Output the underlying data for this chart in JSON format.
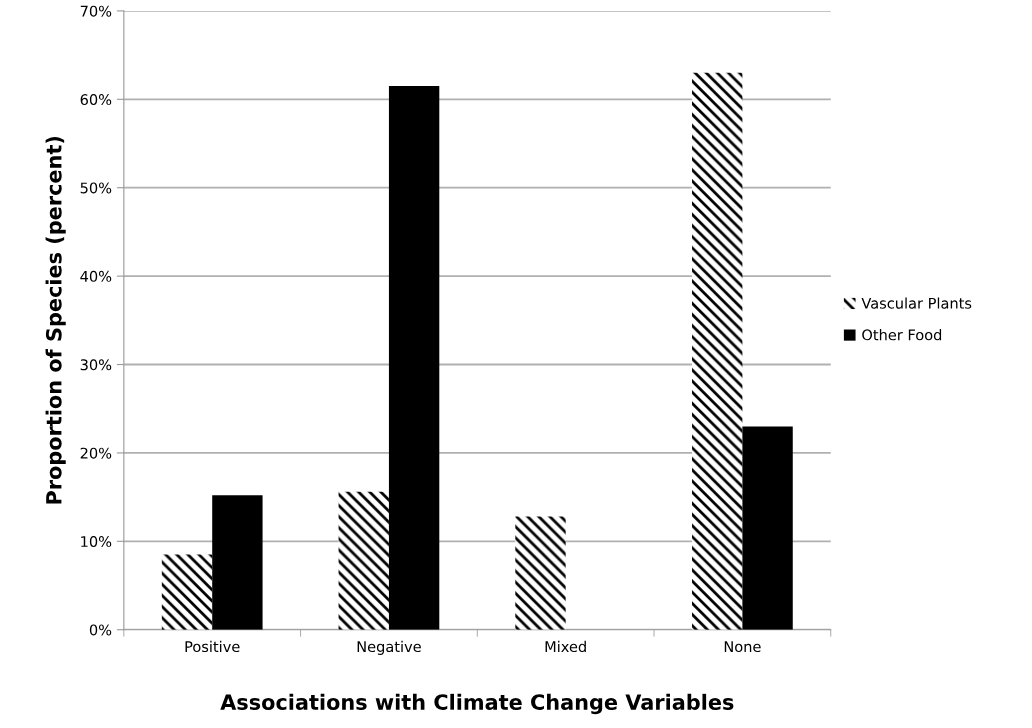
{
  "chart_data": {
    "type": "bar",
    "xlabel": "Associations with Climate Change Variables",
    "ylabel": "Proportion of Species (percent)",
    "categories": [
      "Positive",
      "Negative",
      "Mixed",
      "None"
    ],
    "series": [
      {
        "name": "Vascular Plants",
        "color": "#000000",
        "values": [
          8.5,
          15.6,
          12.8,
          63.0
        ]
      },
      {
        "name": "Other Food",
        "color": "#000000",
        "values": [
          15.2,
          61.5,
          0,
          23.0
        ]
      }
    ],
    "ylim": [
      0,
      70
    ],
    "yticks": [
      {
        "value": 0,
        "label": "0%"
      },
      {
        "value": 10,
        "label": "10%"
      },
      {
        "value": 20,
        "label": "20%"
      },
      {
        "value": 30,
        "label": "30%"
      },
      {
        "value": 40,
        "label": "40%"
      },
      {
        "value": 50,
        "label": "50%"
      },
      {
        "value": 60,
        "label": "60%"
      },
      {
        "value": 70,
        "label": "70%"
      }
    ],
    "grid": "y",
    "legend": "right"
  }
}
